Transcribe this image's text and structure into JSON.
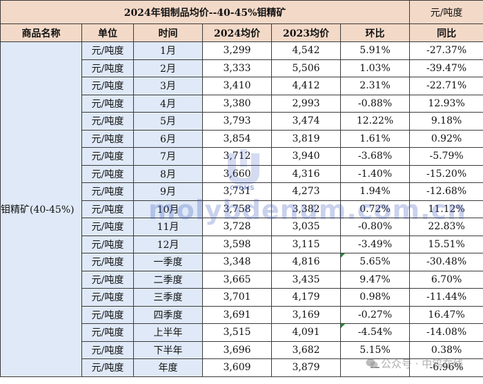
{
  "title": "2024年钼制品均价--40-45%钼精矿",
  "unit_note": "元/吨度",
  "columns": [
    "商品名称",
    "单位",
    "时间",
    "2024均价",
    "2023均价",
    "环比",
    "同比"
  ],
  "product_name": "钼精矿(40-45%)",
  "rows": [
    {
      "unit": "元/吨度",
      "time": "1月",
      "v2024": "3,299",
      "v2023": "4,542",
      "mom": "5.91%",
      "yoy": "-27.37%"
    },
    {
      "unit": "元/吨度",
      "time": "2月",
      "v2024": "3,333",
      "v2023": "5,506",
      "mom": "1.03%",
      "yoy": "-39.47%"
    },
    {
      "unit": "元/吨度",
      "time": "3月",
      "v2024": "3,410",
      "v2023": "4,412",
      "mom": "2.31%",
      "yoy": "-22.71%"
    },
    {
      "unit": "元/吨度",
      "time": "4月",
      "v2024": "3,380",
      "v2023": "2,993",
      "mom": "-0.88%",
      "yoy": "12.93%"
    },
    {
      "unit": "元/吨度",
      "time": "5月",
      "v2024": "3,793",
      "v2023": "3,474",
      "mom": "12.22%",
      "yoy": "9.18%"
    },
    {
      "unit": "元/吨度",
      "time": "6月",
      "v2024": "3,854",
      "v2023": "3,819",
      "mom": "1.61%",
      "yoy": "0.92%"
    },
    {
      "unit": "元/吨度",
      "time": "7月",
      "v2024": "3,712",
      "v2023": "3,940",
      "mom": "-3.68%",
      "yoy": "-5.79%"
    },
    {
      "unit": "元/吨度",
      "time": "8月",
      "v2024": "3,660",
      "v2023": "4,316",
      "mom": "-1.40%",
      "yoy": "-15.20%"
    },
    {
      "unit": "元/吨度",
      "time": "9月",
      "v2024": "3,731",
      "v2023": "4,273",
      "mom": "1.94%",
      "yoy": "-12.68%"
    },
    {
      "unit": "元/吨度",
      "time": "10月",
      "v2024": "3,758",
      "v2023": "3,382",
      "mom": "0.72%",
      "yoy": "11.12%"
    },
    {
      "unit": "元/吨度",
      "time": "11月",
      "v2024": "3,728",
      "v2023": "3,035",
      "mom": "-0.80%",
      "yoy": "22.83%"
    },
    {
      "unit": "元/吨度",
      "time": "12月",
      "v2024": "3,598",
      "v2023": "3,115",
      "mom": "-3.49%",
      "yoy": "15.51%"
    },
    {
      "unit": "元/吨度",
      "time": "一季度",
      "v2024": "3,348",
      "v2023": "4,816",
      "mom": "5.65%",
      "yoy": "-30.48%"
    },
    {
      "unit": "元/吨度",
      "time": "二季度",
      "v2024": "3,665",
      "v2023": "3,435",
      "mom": "9.47%",
      "yoy": "6.70%"
    },
    {
      "unit": "元/吨度",
      "time": "三季度",
      "v2024": "3,701",
      "v2023": "4,179",
      "mom": "0.98%",
      "yoy": "-11.44%"
    },
    {
      "unit": "元/吨度",
      "time": "四季度",
      "v2024": "3,691",
      "v2023": "3,169",
      "mom": "-0.27%",
      "yoy": "16.47%"
    },
    {
      "unit": "元/吨度",
      "time": "上半年",
      "v2024": "3,515",
      "v2023": "4,091",
      "mom": "-4.54%",
      "yoy": "-14.08%"
    },
    {
      "unit": "元/吨度",
      "time": "下半年",
      "v2024": "3,696",
      "v2023": "3,682",
      "mom": "5.15%",
      "yoy": "0.38%"
    },
    {
      "unit": "元/吨度",
      "time": "年度",
      "v2024": "3,609",
      "v2023": "3,879",
      "mom": "—",
      "yoy": "-6.96%"
    }
  ],
  "watermark": {
    "site_text": "molybdenum.com.cn",
    "logo_text": "CTDMS",
    "footer_text": "公众号 · 中钨在线"
  },
  "colors": {
    "positive": "#e0202a",
    "negative": "#1f8f36",
    "header_fill": "#f3d9c8",
    "label_fill": "#dfe9f7"
  }
}
